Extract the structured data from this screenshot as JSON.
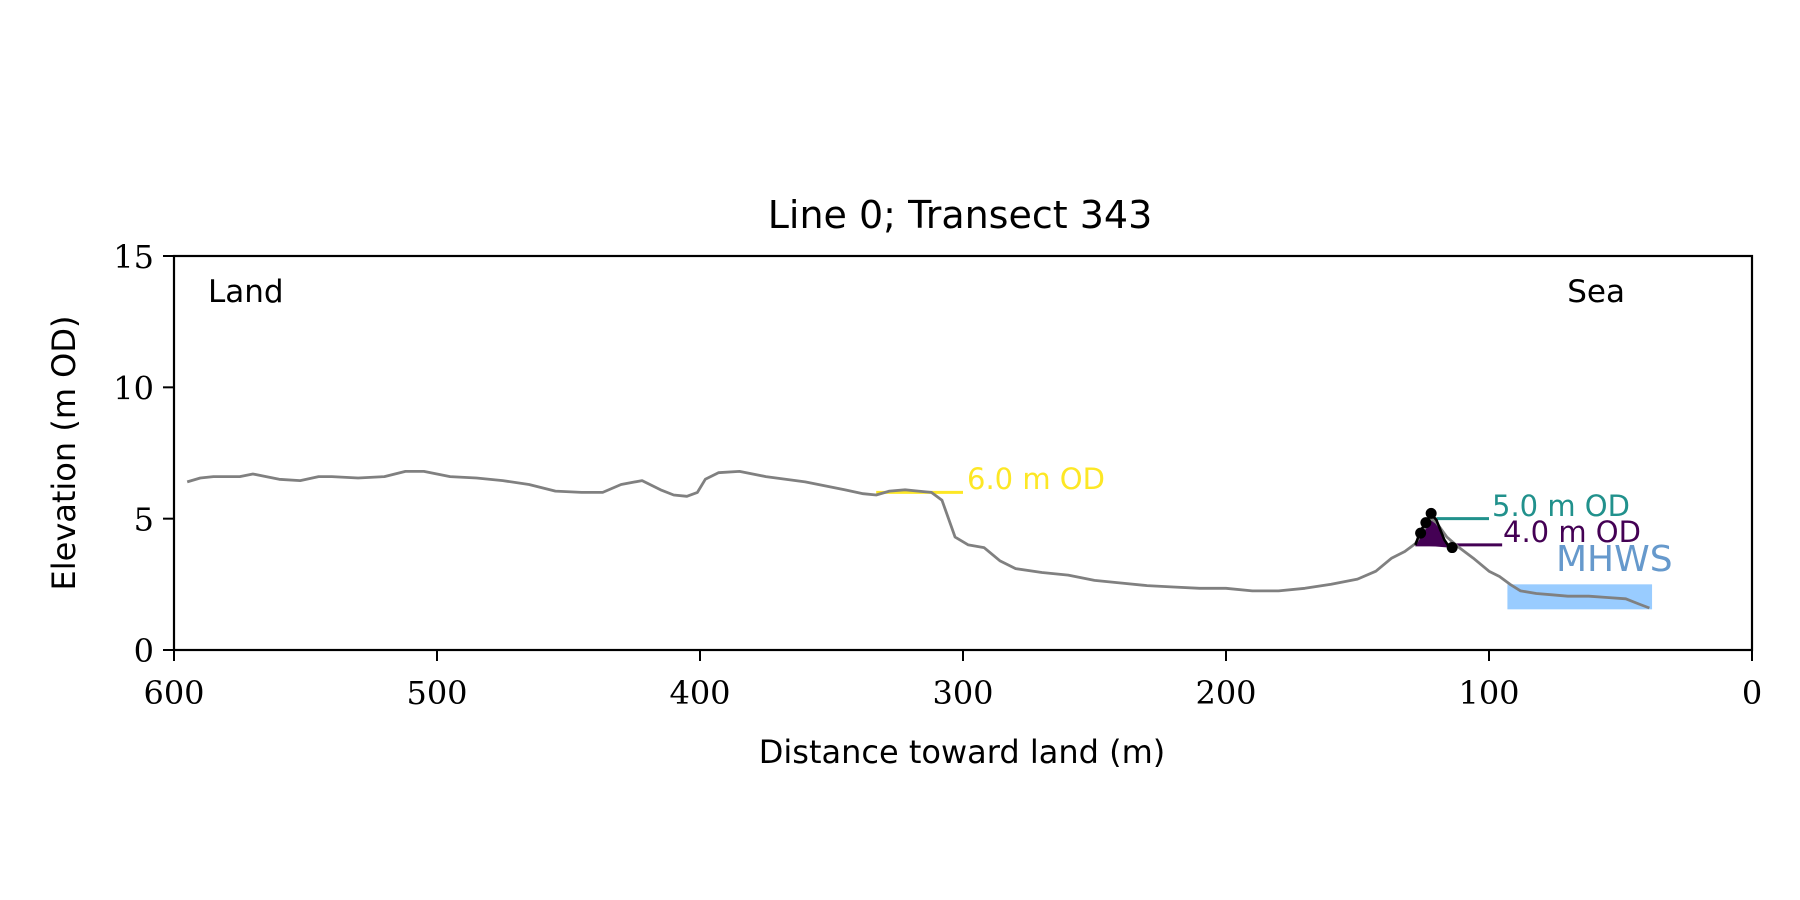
{
  "chart_data": {
    "type": "line",
    "title": "Line 0; Transect 343",
    "xlabel": "Distance toward land (m)",
    "ylabel": "Elevation (m OD)",
    "xlim": [
      600,
      0
    ],
    "ylim": [
      0,
      15
    ],
    "x_ticks": [
      600,
      500,
      400,
      300,
      200,
      100,
      0
    ],
    "y_ticks": [
      0,
      5,
      10,
      15
    ],
    "grid": false,
    "annotations": {
      "left": "Land",
      "right": "Sea"
    },
    "profile_color": "#808080",
    "profile": [
      [
        595,
        6.4
      ],
      [
        590,
        6.55
      ],
      [
        585,
        6.6
      ],
      [
        575,
        6.6
      ],
      [
        570,
        6.7
      ],
      [
        565,
        6.6
      ],
      [
        560,
        6.5
      ],
      [
        552,
        6.45
      ],
      [
        545,
        6.6
      ],
      [
        540,
        6.6
      ],
      [
        530,
        6.55
      ],
      [
        520,
        6.6
      ],
      [
        512,
        6.8
      ],
      [
        505,
        6.8
      ],
      [
        495,
        6.6
      ],
      [
        485,
        6.55
      ],
      [
        475,
        6.45
      ],
      [
        465,
        6.3
      ],
      [
        455,
        6.05
      ],
      [
        445,
        6.0
      ],
      [
        437,
        6.0
      ],
      [
        430,
        6.3
      ],
      [
        422,
        6.45
      ],
      [
        415,
        6.1
      ],
      [
        410,
        5.9
      ],
      [
        405,
        5.85
      ],
      [
        401,
        6.0
      ],
      [
        398,
        6.5
      ],
      [
        393,
        6.75
      ],
      [
        385,
        6.8
      ],
      [
        375,
        6.6
      ],
      [
        360,
        6.4
      ],
      [
        345,
        6.1
      ],
      [
        338,
        5.95
      ],
      [
        333,
        5.9
      ],
      [
        328,
        6.05
      ],
      [
        322,
        6.1
      ],
      [
        317,
        6.05
      ],
      [
        312,
        6.0
      ],
      [
        308,
        5.7
      ],
      [
        303,
        4.3
      ],
      [
        298,
        4.0
      ],
      [
        292,
        3.9
      ],
      [
        286,
        3.4
      ],
      [
        280,
        3.1
      ],
      [
        270,
        2.95
      ],
      [
        260,
        2.85
      ],
      [
        250,
        2.65
      ],
      [
        240,
        2.55
      ],
      [
        230,
        2.45
      ],
      [
        220,
        2.4
      ],
      [
        210,
        2.35
      ],
      [
        200,
        2.35
      ],
      [
        190,
        2.25
      ],
      [
        180,
        2.25
      ],
      [
        170,
        2.35
      ],
      [
        160,
        2.5
      ],
      [
        150,
        2.7
      ],
      [
        143,
        3.0
      ],
      [
        137,
        3.5
      ],
      [
        132,
        3.75
      ],
      [
        128,
        4.05
      ],
      [
        125,
        4.55
      ],
      [
        122,
        5.0
      ],
      [
        120,
        4.85
      ],
      [
        116,
        4.3
      ],
      [
        112,
        3.95
      ],
      [
        106,
        3.5
      ],
      [
        100,
        3.0
      ],
      [
        96,
        2.8
      ],
      [
        92,
        2.5
      ],
      [
        88,
        2.25
      ],
      [
        82,
        2.15
      ],
      [
        76,
        2.1
      ],
      [
        70,
        2.05
      ],
      [
        62,
        2.05
      ],
      [
        55,
        2.0
      ],
      [
        48,
        1.95
      ],
      [
        43,
        1.75
      ],
      [
        39,
        1.6
      ]
    ],
    "contours": [
      {
        "label": "6.0 m OD",
        "elevation": 6.0,
        "x_from": 333,
        "x_to": 300,
        "color": "#fde725"
      },
      {
        "label": "5.0 m OD",
        "elevation": 5.0,
        "x_from": 120,
        "x_to": 100,
        "color": "#21918c"
      },
      {
        "label": "4.0 m OD",
        "elevation": 4.0,
        "x_from": 128,
        "x_to": 95,
        "color": "#440154"
      }
    ],
    "dune": {
      "color": "#440154",
      "outline": [
        [
          128,
          4.0
        ],
        [
          126,
          4.55
        ],
        [
          124,
          4.85
        ],
        [
          122,
          5.2
        ],
        [
          120,
          4.95
        ],
        [
          117,
          4.2
        ],
        [
          115,
          3.9
        ]
      ],
      "points": [
        [
          126,
          4.45
        ],
        [
          124,
          4.85
        ],
        [
          122,
          5.2
        ],
        [
          114,
          3.9
        ]
      ]
    },
    "mhws": {
      "label": "MHWS",
      "elevation": 2.5,
      "x_from": 93,
      "x_to": 38,
      "color": "#99ccff",
      "label_color": "#6699cc"
    }
  }
}
